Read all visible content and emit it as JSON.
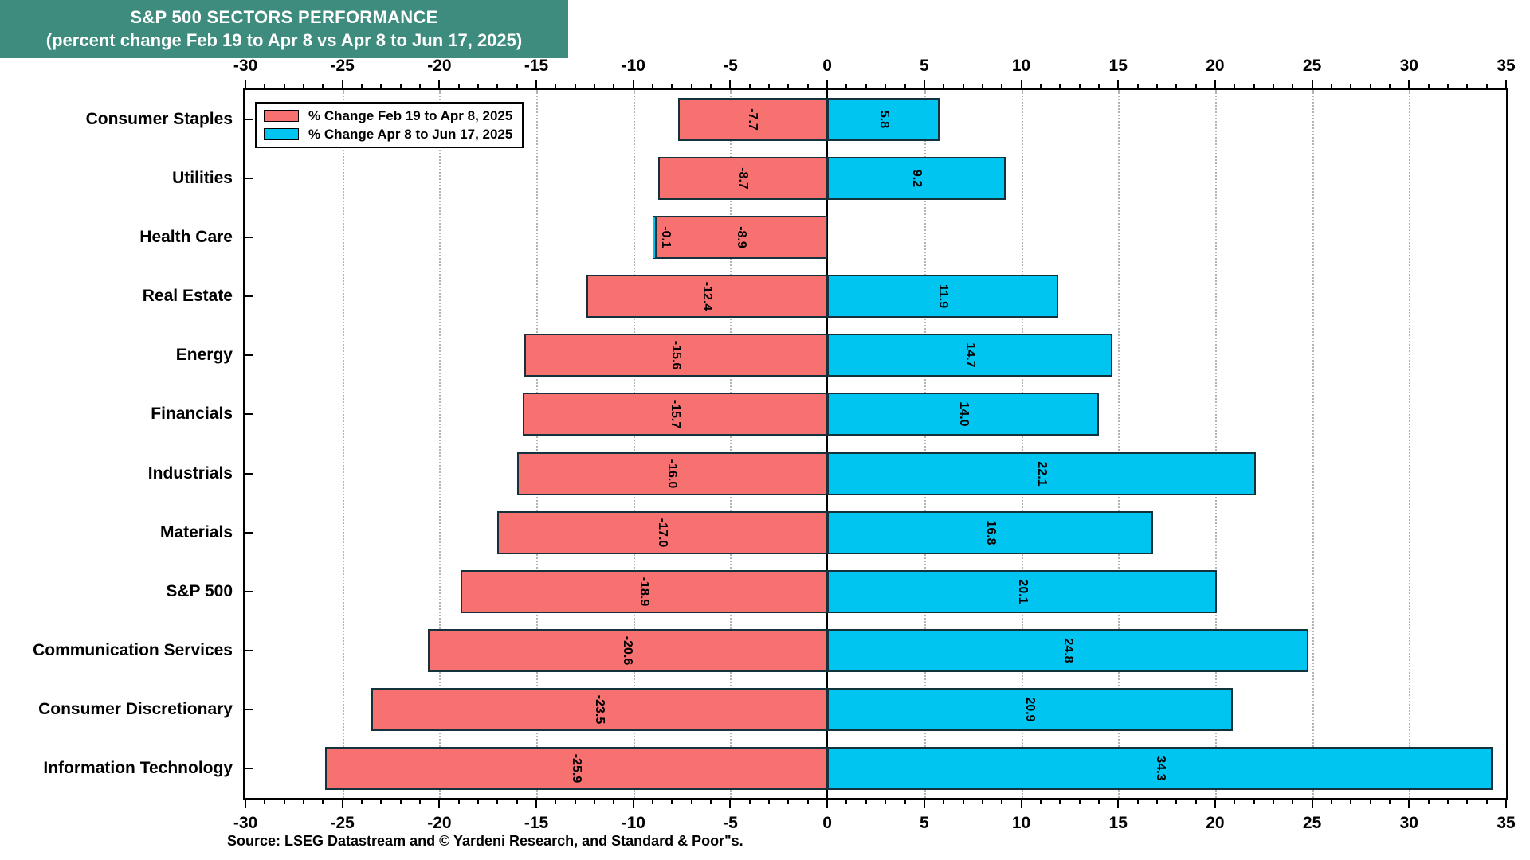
{
  "title": {
    "line1": "S&P 500 SECTORS PERFORMANCE",
    "line2": "(percent change Feb 19 to Apr 8 vs Apr 8 to Jun 17, 2025)",
    "bg_color": "#3D8C7E",
    "text_color": "#FFFFFF"
  },
  "legend": {
    "items": [
      {
        "label": "% Change Feb 19 to Apr 8, 2025",
        "color": "#F87171"
      },
      {
        "label": "% Change Apr 8 to Jun 17, 2025",
        "color": "#00C5F0"
      }
    ]
  },
  "source": "Source: LSEG Datastream and © Yardeni Research, and Standard & Poor\"s.",
  "chart_data": {
    "type": "bar",
    "orientation": "horizontal",
    "title": "S&P 500 SECTORS PERFORMANCE",
    "subtitle": "(percent change Feb 19 to Apr 8 vs Apr 8 to Jun 17, 2025)",
    "categories": [
      "Consumer Staples",
      "Utilities",
      "Health Care",
      "Real Estate",
      "Energy",
      "Financials",
      "Industrials",
      "Materials",
      "S&P 500",
      "Communication Services",
      "Consumer Discretionary",
      "Information Technology"
    ],
    "series": [
      {
        "name": "% Change Feb 19 to Apr 8, 2025",
        "color": "#F87171",
        "values": [
          -7.7,
          -8.7,
          -8.9,
          -12.4,
          -15.6,
          -15.7,
          -16.0,
          -17.0,
          -18.9,
          -20.6,
          -23.5,
          -25.9
        ]
      },
      {
        "name": "% Change Apr 8 to Jun 17, 2025",
        "color": "#00C5F0",
        "values": [
          5.8,
          9.2,
          -0.1,
          11.9,
          14.7,
          14.0,
          22.1,
          16.8,
          20.1,
          24.8,
          20.9,
          34.3
        ]
      }
    ],
    "xlim": [
      -30,
      35
    ],
    "x_tick_step": 5,
    "x_minor_tick_step": 1,
    "grid": "vertical-dotted",
    "zero_line": true,
    "legend_position": "top-left",
    "value_label_rotation": 90
  }
}
